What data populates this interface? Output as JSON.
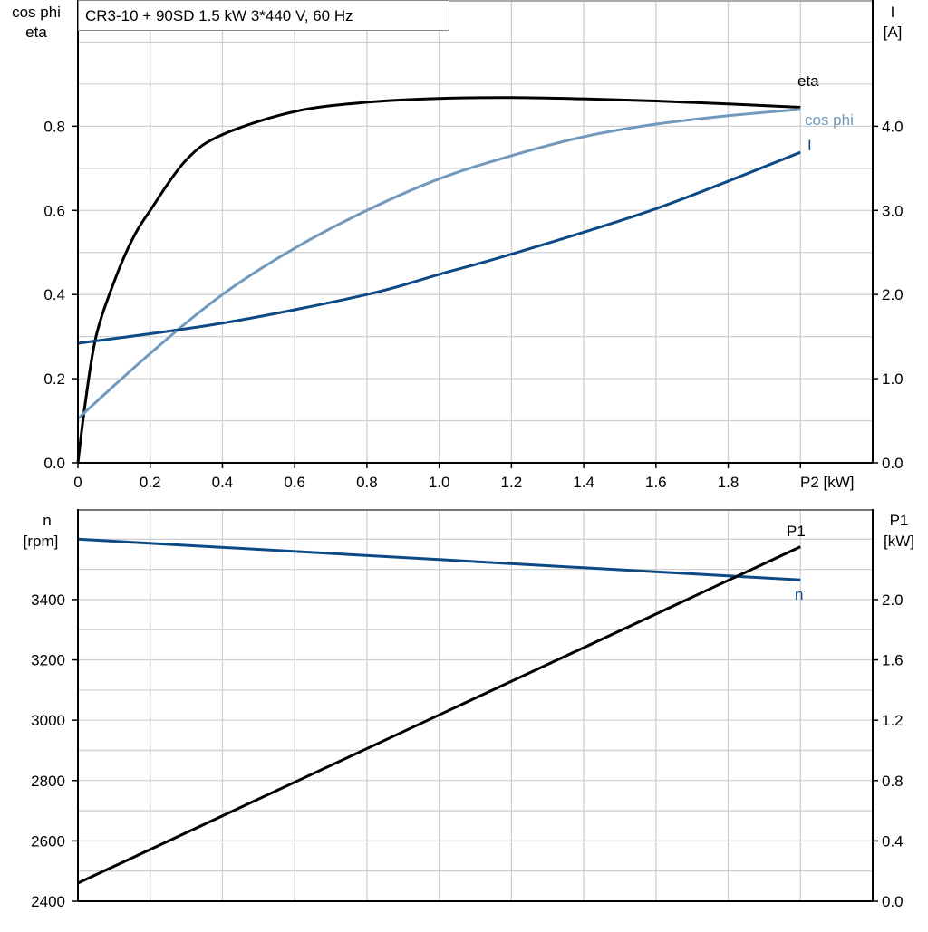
{
  "chart_data": [
    {
      "type": "line",
      "title": "CR3-10 + 90SD   1.5 kW   3*440 V, 60 Hz",
      "xlabel": "P2 [kW]",
      "ylabel_left": [
        "cos phi",
        "eta"
      ],
      "ylabel_right": [
        "I",
        "[A]"
      ],
      "xlim": [
        0,
        2.2
      ],
      "ylim_left": [
        0,
        1.1
      ],
      "ylim_right": [
        0,
        5.5
      ],
      "xticks": [
        "0",
        "0.2",
        "0.4",
        "0.6",
        "0.8",
        "1.0",
        "1.2",
        "1.4",
        "1.6",
        "1.8"
      ],
      "yticks_left": [
        "0.0",
        "0.2",
        "0.4",
        "0.6",
        "0.8"
      ],
      "yticks_right": [
        "0.0",
        "1.0",
        "2.0",
        "3.0",
        "4.0"
      ],
      "grid": true,
      "series": [
        {
          "name": "eta",
          "axis": "left",
          "color": "#000000",
          "x": [
            0,
            0.02,
            0.05,
            0.1,
            0.15,
            0.2,
            0.3,
            0.4,
            0.6,
            0.8,
            1.0,
            1.2,
            1.4,
            1.6,
            1.8,
            2.0
          ],
          "y": [
            0,
            0.14,
            0.3,
            0.43,
            0.53,
            0.6,
            0.72,
            0.78,
            0.835,
            0.857,
            0.866,
            0.868,
            0.865,
            0.86,
            0.853,
            0.845
          ]
        },
        {
          "name": "cos phi",
          "axis": "left",
          "color": "#7199bd",
          "x": [
            0,
            0.2,
            0.4,
            0.6,
            0.8,
            1.0,
            1.2,
            1.4,
            1.6,
            1.8,
            2.0
          ],
          "y": [
            0.105,
            0.26,
            0.4,
            0.51,
            0.6,
            0.675,
            0.73,
            0.775,
            0.805,
            0.825,
            0.84
          ]
        },
        {
          "name": "I",
          "axis": "right",
          "color": "#0d4a85",
          "x": [
            0,
            0.4,
            0.8,
            1.0,
            1.2,
            1.6,
            2.0
          ],
          "y": [
            1.42,
            1.66,
            2.0,
            2.24,
            2.48,
            3.02,
            3.69
          ]
        }
      ]
    },
    {
      "type": "line",
      "xlim": [
        0,
        2.2
      ],
      "ylabel_left": [
        "n",
        "[rpm]"
      ],
      "ylabel_right": [
        "P1",
        "[kW]"
      ],
      "ylim_left": [
        2400,
        3700
      ],
      "ylim_right": [
        0,
        2.6
      ],
      "yticks_left": [
        "2400",
        "2600",
        "2800",
        "3000",
        "3200",
        "3400"
      ],
      "yticks_right": [
        "0.0",
        "0.4",
        "0.8",
        "1.2",
        "1.6",
        "2.0"
      ],
      "grid": true,
      "series": [
        {
          "name": "n",
          "axis": "left",
          "color": "#0d4a85",
          "x": [
            0,
            2.0
          ],
          "y": [
            3600,
            3465
          ]
        },
        {
          "name": "P1",
          "axis": "right",
          "color": "#000000",
          "x": [
            0,
            2.0
          ],
          "y": [
            0.12,
            2.35
          ]
        }
      ]
    }
  ]
}
